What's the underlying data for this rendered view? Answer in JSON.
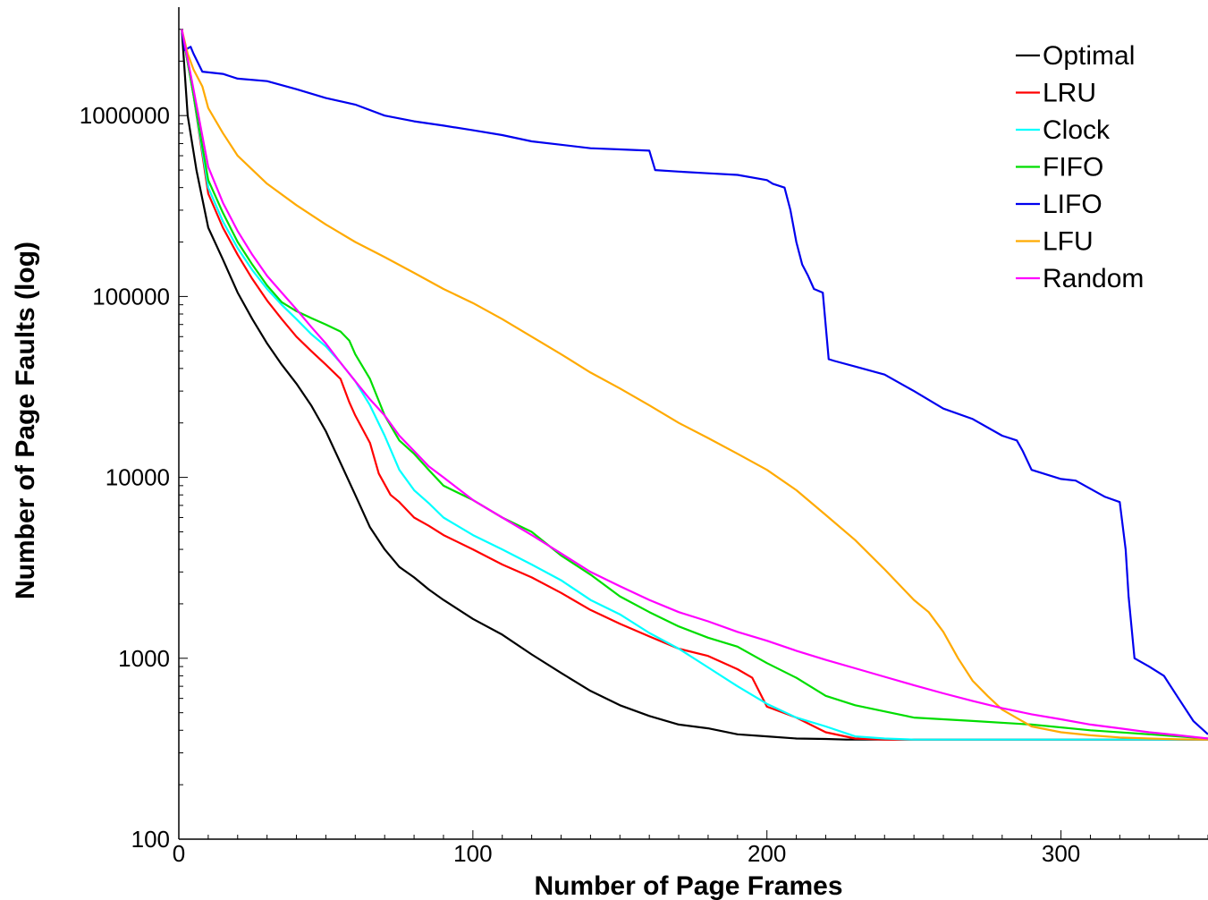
{
  "chart_data": {
    "type": "line",
    "xlabel": "Number of Page Frames",
    "ylabel": "Number of Page Faults (log)",
    "xlim": [
      0,
      350
    ],
    "ylim": [
      100,
      3500000
    ],
    "yscale": "log",
    "x_ticks": [
      {
        "value": 0,
        "label": "0"
      },
      {
        "value": 100,
        "label": "100"
      },
      {
        "value": 200,
        "label": "200"
      },
      {
        "value": 300,
        "label": "300"
      }
    ],
    "y_ticks": [
      {
        "value": 100,
        "label": "100"
      },
      {
        "value": 1000,
        "label": "1000"
      },
      {
        "value": 10000,
        "label": "10000"
      },
      {
        "value": 100000,
        "label": "100000"
      },
      {
        "value": 1000000,
        "label": "1000000"
      }
    ],
    "grid": false,
    "legend_position": "top-right",
    "series": [
      {
        "name": "Optimal",
        "color": "#000000",
        "x": [
          1,
          3,
          6,
          10,
          15,
          20,
          25,
          30,
          35,
          40,
          45,
          50,
          55,
          60,
          65,
          70,
          75,
          80,
          85,
          90,
          100,
          110,
          120,
          130,
          140,
          150,
          160,
          170,
          180,
          190,
          200,
          210,
          220,
          227,
          240,
          260,
          280,
          300,
          320,
          340,
          350
        ],
        "y": [
          3000000,
          1000000,
          500000,
          240000,
          160000,
          105000,
          75000,
          55000,
          42000,
          33000,
          25000,
          18000,
          12000,
          8000,
          5300,
          4000,
          3200,
          2800,
          2400,
          2100,
          1650,
          1350,
          1050,
          830,
          660,
          550,
          480,
          430,
          410,
          380,
          370,
          360,
          358,
          355,
          355,
          355,
          355,
          355,
          355,
          355,
          355
        ]
      },
      {
        "name": "LRU",
        "color": "#ff0000",
        "x": [
          1,
          5,
          10,
          15,
          20,
          25,
          30,
          35,
          40,
          45,
          50,
          55,
          58,
          60,
          65,
          68,
          72,
          75,
          80,
          85,
          90,
          100,
          110,
          120,
          130,
          140,
          150,
          160,
          170,
          180,
          190,
          195,
          200,
          210,
          220,
          230,
          240,
          250,
          270,
          300,
          330,
          350
        ],
        "y": [
          3000000,
          1300000,
          370000,
          240000,
          170000,
          125000,
          95000,
          75000,
          60000,
          50000,
          42000,
          35000,
          26000,
          22000,
          15500,
          10500,
          8000,
          7300,
          6000,
          5400,
          4800,
          4000,
          3300,
          2800,
          2300,
          1850,
          1550,
          1320,
          1130,
          1030,
          870,
          780,
          540,
          470,
          390,
          360,
          355,
          355,
          355,
          355,
          355,
          355
        ]
      },
      {
        "name": "Clock",
        "color": "#00ffff",
        "x": [
          1,
          5,
          10,
          15,
          20,
          25,
          30,
          35,
          40,
          45,
          50,
          55,
          60,
          65,
          70,
          75,
          80,
          85,
          90,
          100,
          110,
          120,
          130,
          140,
          150,
          160,
          170,
          180,
          190,
          200,
          210,
          220,
          230,
          240,
          250,
          270,
          300,
          330,
          350
        ],
        "y": [
          3000000,
          1300000,
          400000,
          260000,
          185000,
          140000,
          110000,
          90000,
          75000,
          62000,
          53000,
          43000,
          34000,
          25000,
          17000,
          11000,
          8500,
          7200,
          6000,
          4800,
          4000,
          3300,
          2700,
          2100,
          1750,
          1380,
          1130,
          890,
          700,
          560,
          470,
          420,
          370,
          360,
          355,
          355,
          355,
          355,
          355
        ]
      },
      {
        "name": "FIFO",
        "color": "#00dd00",
        "x": [
          1,
          5,
          10,
          15,
          20,
          25,
          30,
          35,
          40,
          45,
          50,
          55,
          58,
          60,
          65,
          70,
          75,
          80,
          85,
          90,
          100,
          110,
          120,
          130,
          140,
          150,
          160,
          170,
          180,
          190,
          200,
          210,
          220,
          230,
          250,
          270,
          290,
          310,
          330,
          350
        ],
        "y": [
          3000000,
          1300000,
          440000,
          290000,
          200000,
          150000,
          115000,
          93000,
          83000,
          76000,
          70000,
          64000,
          57000,
          48000,
          35000,
          22000,
          16000,
          13500,
          11000,
          9000,
          7500,
          6000,
          5000,
          3700,
          2900,
          2200,
          1800,
          1500,
          1300,
          1160,
          940,
          780,
          620,
          550,
          470,
          450,
          430,
          400,
          380,
          360
        ]
      },
      {
        "name": "LIFO",
        "color": "#0000ee",
        "x": [
          1,
          2,
          4,
          5,
          8,
          15,
          20,
          30,
          40,
          50,
          60,
          70,
          80,
          90,
          100,
          110,
          120,
          130,
          140,
          150,
          160,
          162,
          170,
          180,
          190,
          200,
          202,
          206,
          208,
          210,
          212,
          214,
          216,
          219,
          221,
          223,
          230,
          240,
          250,
          260,
          270,
          280,
          285,
          287,
          290,
          300,
          305,
          315,
          320,
          322,
          323,
          325,
          330,
          335,
          340,
          345,
          350
        ],
        "y": [
          3000000,
          2300000,
          2400000,
          2200000,
          1750000,
          1700000,
          1600000,
          1550000,
          1400000,
          1250000,
          1150000,
          1000000,
          930000,
          880000,
          830000,
          780000,
          720000,
          690000,
          660000,
          650000,
          640000,
          500000,
          490000,
          480000,
          470000,
          440000,
          420000,
          400000,
          300000,
          200000,
          150000,
          130000,
          110000,
          105000,
          45000,
          44000,
          41000,
          37000,
          30000,
          24000,
          21000,
          17000,
          16000,
          14000,
          11000,
          9800,
          9600,
          7800,
          7300,
          4000,
          2200,
          1000,
          900,
          800,
          600,
          450,
          380
        ]
      },
      {
        "name": "LFU",
        "color": "#ffaa00",
        "x": [
          1,
          3,
          5,
          8,
          10,
          15,
          20,
          30,
          40,
          50,
          60,
          70,
          80,
          90,
          100,
          110,
          120,
          130,
          140,
          150,
          160,
          170,
          180,
          190,
          200,
          210,
          220,
          230,
          240,
          250,
          255,
          260,
          265,
          270,
          275,
          280,
          290,
          300,
          310,
          320,
          330,
          340,
          350
        ],
        "y": [
          3000000,
          2200000,
          1800000,
          1450000,
          1100000,
          800000,
          600000,
          420000,
          320000,
          250000,
          200000,
          165000,
          135000,
          110000,
          92000,
          75000,
          60000,
          48000,
          38000,
          31000,
          25000,
          20000,
          16500,
          13500,
          11000,
          8500,
          6200,
          4500,
          3100,
          2100,
          1800,
          1400,
          1000,
          750,
          620,
          520,
          420,
          390,
          375,
          365,
          360,
          357,
          355
        ]
      },
      {
        "name": "Random",
        "color": "#ff00ff",
        "x": [
          1,
          5,
          10,
          15,
          20,
          25,
          30,
          35,
          40,
          45,
          50,
          55,
          60,
          65,
          70,
          75,
          80,
          85,
          90,
          100,
          110,
          120,
          130,
          140,
          150,
          160,
          170,
          180,
          190,
          200,
          210,
          220,
          230,
          240,
          250,
          260,
          270,
          280,
          290,
          300,
          310,
          320,
          330,
          340,
          350
        ],
        "y": [
          3000000,
          1400000,
          520000,
          330000,
          230000,
          170000,
          130000,
          105000,
          85000,
          68000,
          55000,
          43000,
          34000,
          27000,
          22000,
          17000,
          14000,
          11500,
          10000,
          7500,
          6000,
          4800,
          3800,
          3000,
          2500,
          2100,
          1800,
          1600,
          1400,
          1250,
          1100,
          980,
          880,
          790,
          710,
          640,
          580,
          530,
          490,
          460,
          430,
          410,
          390,
          375,
          360
        ]
      }
    ]
  }
}
